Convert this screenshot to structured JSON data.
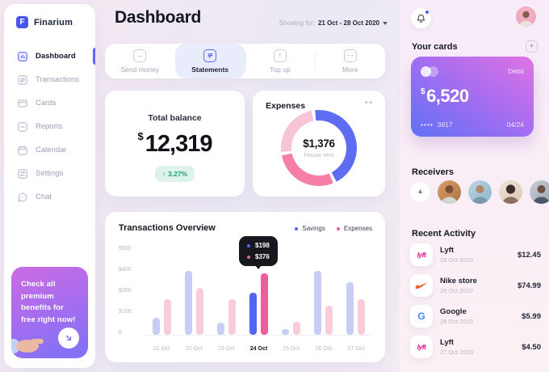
{
  "app": {
    "name": "Finarium",
    "accent_color": "#5b68f5"
  },
  "sidebar": {
    "items": [
      {
        "label": "Dashboard",
        "icon": "dashboard-icon",
        "active": true
      },
      {
        "label": "Transactions",
        "icon": "transactions-icon",
        "active": false
      },
      {
        "label": "Cards",
        "icon": "card-icon",
        "active": false
      },
      {
        "label": "Reports",
        "icon": "report-icon",
        "active": false
      },
      {
        "label": "Calendar",
        "icon": "calendar-icon",
        "active": false
      },
      {
        "label": "Settings",
        "icon": "settings-icon",
        "active": false
      },
      {
        "label": "Chat",
        "icon": "chat-icon",
        "active": false
      }
    ],
    "promo": {
      "text": "Check all premium benefits for free right now!",
      "button_icon": "arrow-down-right-icon"
    }
  },
  "header": {
    "title": "Dashboard",
    "showing_label": "Showing for:",
    "date_range": "21 Oct - 28 Oct 2020"
  },
  "actions": [
    {
      "label": "Send money",
      "glyph": "→",
      "active": false
    },
    {
      "label": "Statements",
      "glyph": "",
      "active": true
    },
    {
      "label": "Top up",
      "glyph": "↑",
      "active": false
    },
    {
      "label": "More",
      "glyph": "⋯",
      "active": false
    }
  ],
  "balance": {
    "title": "Total balance",
    "currency": "$",
    "amount": "12,319",
    "trend_arrow": "↑",
    "change": "3.27%",
    "trend_color": "#16a377"
  },
  "expenses": {
    "title": "Expenses",
    "amount": "$1,376",
    "category": "House rent",
    "segments": [
      {
        "color": "#5e6cf2",
        "pct": 44
      },
      {
        "color": "#f67fa8",
        "pct": 28
      },
      {
        "color": "#f7c3d6",
        "pct": 23.5
      }
    ]
  },
  "chart_data": {
    "type": "bar",
    "title": "Transactions Overview",
    "categories": [
      "21 Oct",
      "22 Oct",
      "23 Oct",
      "24 Oct",
      "25 Oct",
      "26 Oct",
      "27 Oct"
    ],
    "series": [
      {
        "name": "Savings",
        "color": "#5463f0",
        "muted_color": "#c7cdf7",
        "values": [
          80,
          395,
          55,
          198,
          25,
          400,
          290
        ]
      },
      {
        "name": "Expenses",
        "color": "#ef5c9b",
        "muted_color": "#f8cdd9",
        "values": [
          165,
          240,
          165,
          376,
          60,
          135,
          165
        ]
      }
    ],
    "highlight_index": 3,
    "tooltip": {
      "savings": "$198",
      "expenses": "$376"
    },
    "y_ticks": [
      "$500",
      "$400",
      "$200",
      "$100",
      "0"
    ],
    "ylim": [
      0,
      500
    ],
    "grid": false,
    "legend_position": "top-right"
  },
  "cards_panel": {
    "title": "Your cards",
    "card": {
      "type": "Debit",
      "currency": "$",
      "amount": "6,520",
      "masked_dots": "••••",
      "last4": "3917",
      "expiry": "04/24"
    }
  },
  "receivers": {
    "title": "Receivers",
    "add_label": "+",
    "avatar_count": 4
  },
  "recent": {
    "title": "Recent Activity",
    "items": [
      {
        "name": "Lyft",
        "date": "28 Oct 2020",
        "amount": "$12.45",
        "icon": "lyft-logo",
        "icon_text": "lyft"
      },
      {
        "name": "Nike store",
        "date": "28 Oct 2020",
        "amount": "$74.99",
        "icon": "nike-logo",
        "icon_text": ""
      },
      {
        "name": "Google",
        "date": "28 Oct 2020",
        "amount": "$5.99",
        "icon": "google-logo",
        "icon_text": "G"
      },
      {
        "name": "Lyft",
        "date": "27 Oct 2020",
        "amount": "$4.50",
        "icon": "lyft-logo",
        "icon_text": "lyft"
      }
    ]
  }
}
